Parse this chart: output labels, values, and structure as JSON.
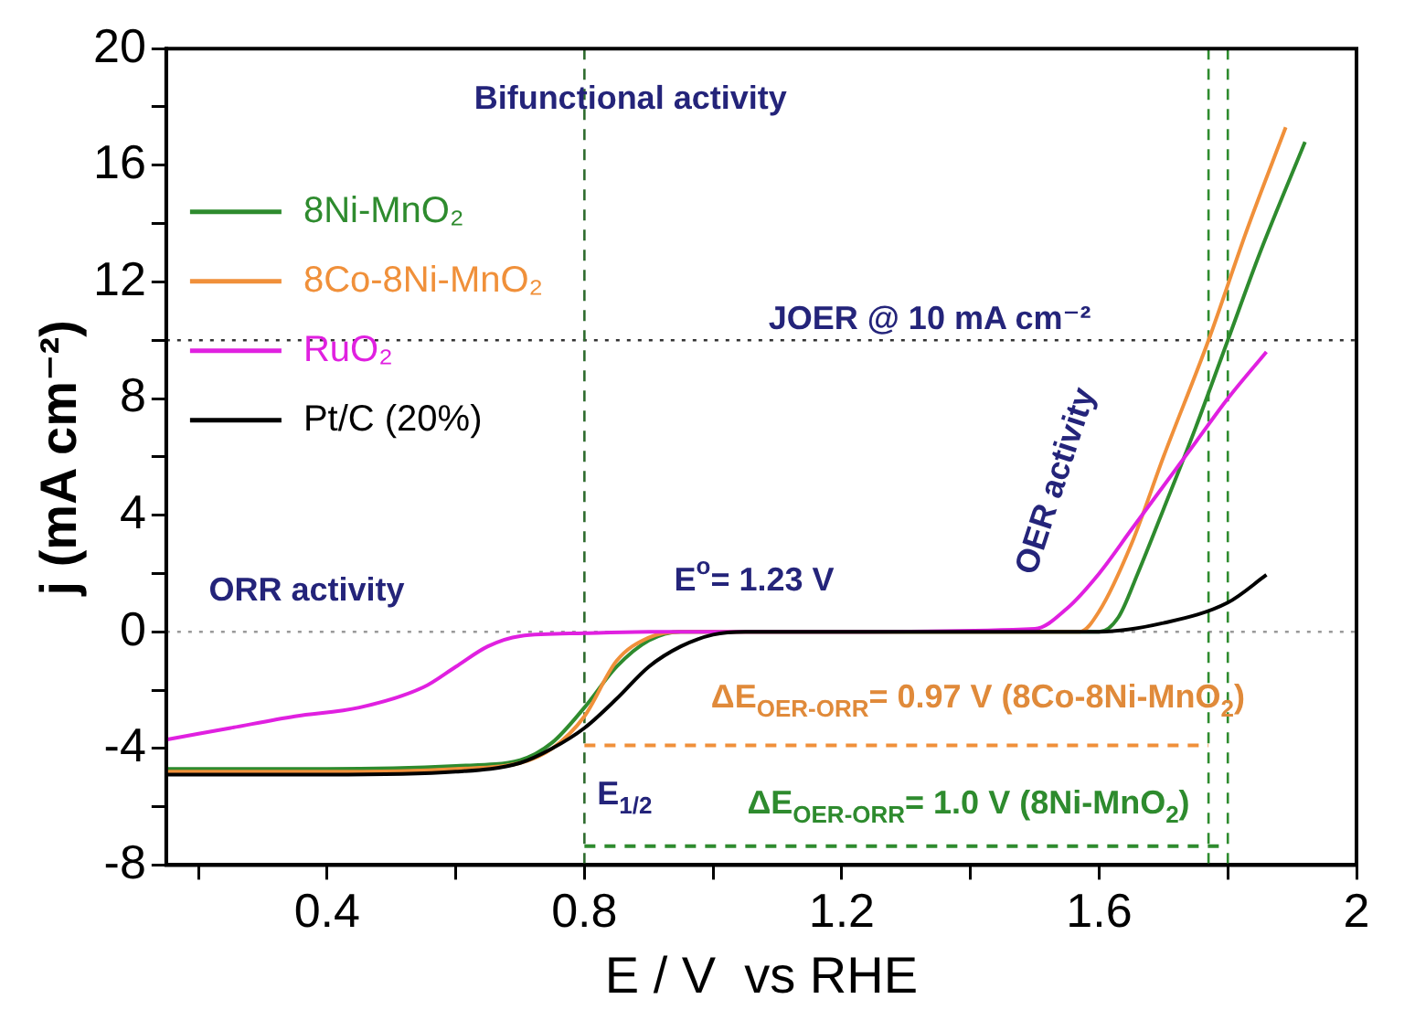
{
  "chart_data": {
    "type": "line",
    "xlabel": "E / V  vs RHE",
    "ylabel": "j (mA cm⁻²)",
    "xlim": [
      0.15,
      2.0
    ],
    "xticks": [
      {
        "value": 0.2,
        "label": null
      },
      0.4,
      {
        "value": 0.6,
        "label": null
      },
      0.8,
      {
        "value": 1.0,
        "label": null
      },
      1.2,
      {
        "value": 1.4,
        "label": null
      },
      1.6,
      {
        "value": 1.8,
        "label": null
      },
      2.0
    ],
    "ylim": [
      -8,
      20
    ],
    "yticks": [
      -8,
      {
        "value": -6,
        "label": null
      },
      -4,
      {
        "value": -2,
        "label": null
      },
      0,
      {
        "value": 2,
        "label": null
      },
      4,
      {
        "value": 6,
        "label": null
      },
      8,
      {
        "value": 10,
        "label": null
      },
      12,
      {
        "value": 14,
        "label": null
      },
      16,
      {
        "value": 18,
        "label": null
      },
      20
    ],
    "grid": false,
    "legend": "top left",
    "series": [
      {
        "name": "8Ni-MnO₂",
        "color": "#2e8b2e",
        "x": [
          0.15,
          0.4,
          0.6,
          0.7,
          0.75,
          0.8,
          0.85,
          0.9,
          0.95,
          1.0,
          1.3,
          1.6,
          1.63,
          1.66,
          1.7,
          1.75,
          1.8,
          1.85,
          1.92
        ],
        "values": [
          -4.7,
          -4.7,
          -4.6,
          -4.4,
          -3.8,
          -2.6,
          -1.2,
          -0.3,
          0,
          0,
          0,
          0,
          0.5,
          2,
          4.2,
          7,
          10,
          13,
          16.8
        ]
      },
      {
        "name": "8Co-8Ni-MnO₂",
        "color": "#f0903a",
        "x": [
          0.15,
          0.4,
          0.6,
          0.7,
          0.75,
          0.8,
          0.85,
          0.9,
          0.95,
          1.0,
          1.3,
          1.57,
          1.6,
          1.65,
          1.7,
          1.77,
          1.83,
          1.89
        ],
        "values": [
          -4.8,
          -4.8,
          -4.7,
          -4.5,
          -4.0,
          -2.9,
          -1.0,
          -0.2,
          0,
          0,
          0,
          0,
          0.7,
          3,
          6,
          10,
          13.8,
          17.3
        ]
      },
      {
        "name": "RuO₂",
        "color": "#e020e0",
        "x": [
          0.15,
          0.25,
          0.35,
          0.45,
          0.55,
          0.6,
          0.65,
          0.7,
          0.8,
          0.9,
          1.2,
          1.5,
          1.55,
          1.6,
          1.65,
          1.7,
          1.75,
          1.8,
          1.86
        ],
        "values": [
          -3.7,
          -3.3,
          -2.9,
          -2.6,
          -1.9,
          -1.2,
          -0.5,
          -0.15,
          -0.05,
          0,
          0,
          0.1,
          0.8,
          2,
          3.5,
          5,
          6.5,
          8,
          9.6
        ]
      },
      {
        "name": "Pt/C (20%)",
        "color": "#000000",
        "x": [
          0.15,
          0.4,
          0.6,
          0.7,
          0.75,
          0.8,
          0.85,
          0.9,
          0.95,
          1.0,
          1.05,
          1.3,
          1.6,
          1.7,
          1.8,
          1.86
        ],
        "values": [
          -4.9,
          -4.9,
          -4.8,
          -4.5,
          -4.0,
          -3.3,
          -2.3,
          -1.2,
          -0.5,
          -0.1,
          0,
          0,
          0,
          0.3,
          1.0,
          1.95
        ]
      },
      {
        "color": "#f0903a",
        "line_style": "dashed",
        "x": [
          0.8,
          1.77
        ],
        "values": [
          -3.9,
          -3.9
        ]
      },
      {
        "color": "#2e8b2e",
        "line_style": "dashed",
        "x": [
          0.8,
          1.8
        ],
        "values": [
          -7.35,
          -7.35
        ]
      }
    ],
    "ref_lines": [
      {
        "axis": "y",
        "value": 10,
        "color": "#333333",
        "line_style": "dotted"
      },
      {
        "axis": "y",
        "value": 0,
        "color": "#999999",
        "line_style": "dotted"
      },
      {
        "axis": "x",
        "value": 0.8,
        "color": "#2e6b2e",
        "line_style": "dashed"
      },
      {
        "axis": "x",
        "value": 1.77,
        "color": "#2e8b2e",
        "line_style": "dashed"
      },
      {
        "axis": "x",
        "value": 1.8,
        "color": "#2e8b2e",
        "line_style": "dashed"
      }
    ],
    "annotations": [
      "Bifunctional activity",
      "ORR activity",
      "OER activity",
      "JOER @ 10 mA cm⁻²",
      "E$^{o}$= 1.23 V",
      {
        "text": "E$_{1/2}$",
        "x": 0.8,
        "y": -5.6
      },
      "ΔE$_{OER-ORR}$= 0.97 V (8Co-8Ni-MnO$_{2}$)",
      "ΔE$_{OER-ORR}$= 1.0 V (8Ni-MnO$_{2}$)"
    ]
  }
}
